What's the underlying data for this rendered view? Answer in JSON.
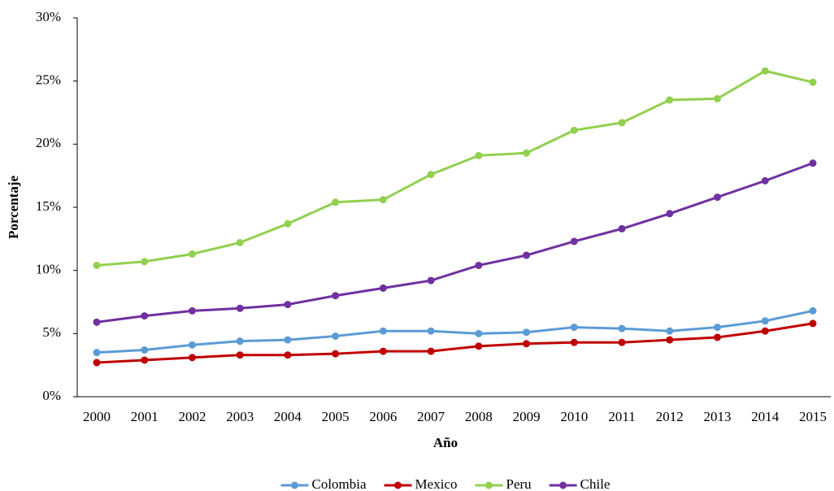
{
  "chart_data": {
    "type": "line",
    "x_label": "Año",
    "y_label": "Porcentaje",
    "categories": [
      "2000",
      "2001",
      "2002",
      "2003",
      "2004",
      "2005",
      "2006",
      "2007",
      "2008",
      "2009",
      "2010",
      "2011",
      "2012",
      "2013",
      "2014",
      "2015"
    ],
    "series": [
      {
        "name": "Colombia",
        "color": "#5b9bd5",
        "values": [
          3.5,
          3.7,
          4.1,
          4.4,
          4.5,
          4.8,
          5.2,
          5.2,
          5.0,
          5.1,
          5.5,
          5.4,
          5.2,
          5.5,
          6.0,
          6.8
        ]
      },
      {
        "name": "Mexico",
        "color": "#c00000",
        "values": [
          2.7,
          2.9,
          3.1,
          3.3,
          3.3,
          3.4,
          3.6,
          3.6,
          4.0,
          4.2,
          4.3,
          4.3,
          4.5,
          4.7,
          5.2,
          5.8
        ]
      },
      {
        "name": "Peru",
        "color": "#92d050",
        "values": [
          10.4,
          10.7,
          11.3,
          12.2,
          13.7,
          15.4,
          15.6,
          17.6,
          19.1,
          19.3,
          21.1,
          21.7,
          23.5,
          23.6,
          25.8,
          24.9
        ]
      },
      {
        "name": "Chile",
        "color": "#7030a0",
        "values": [
          5.9,
          6.4,
          6.8,
          7.0,
          7.3,
          8.0,
          8.6,
          9.2,
          10.4,
          11.2,
          12.3,
          13.3,
          14.5,
          15.8,
          17.1,
          18.5
        ]
      }
    ],
    "ylim": [
      0,
      30
    ],
    "yticks": [
      {
        "value": 0,
        "label": "0%"
      },
      {
        "value": 5,
        "label": "5%"
      },
      {
        "value": 10,
        "label": "10%"
      },
      {
        "value": 15,
        "label": "15%"
      },
      {
        "value": 20,
        "label": "20%"
      },
      {
        "value": 25,
        "label": "25%"
      },
      {
        "value": 30,
        "label": "30%"
      }
    ],
    "grid": false,
    "legend": "bottom"
  }
}
